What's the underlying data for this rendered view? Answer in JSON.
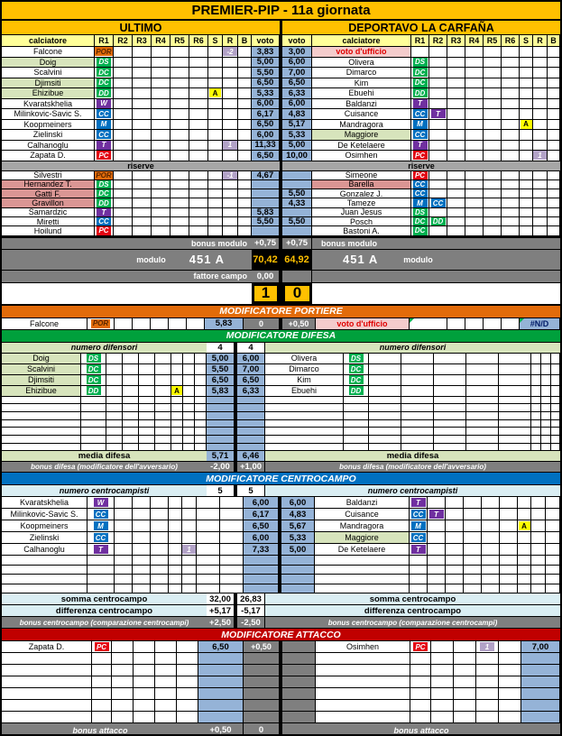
{
  "title": "PREMIER-PIP - 11a giornata",
  "colors": {
    "gold": "#FFC000",
    "pale_yellow": "#FFFF99",
    "light_green": "#D7E4BC",
    "pink": "#DA9694",
    "pink_light": "#F4CCCC",
    "red_text": "#E00000",
    "blue": "#95B3D7",
    "light_blue": "#DAEEF3",
    "gray": "#7F7F7F",
    "banner_orange": "#E26B0A",
    "banner_green": "#00A03C",
    "banner_blue": "#0070C0",
    "banner_red": "#C00000",
    "badge_green": "#00B050",
    "badge_blue": "#0070C0",
    "badge_purple": "#7030A0",
    "badge_red": "#E30613",
    "badge_lilac": "#B2A2C7"
  },
  "header": {
    "home_team": "ULTIMO",
    "away_team": "DEPORTAVO LA CARFAÑA",
    "calciatore": "calciatore",
    "voto": "voto",
    "rating_cols": [
      "R1",
      "R2",
      "R3",
      "R4",
      "R5",
      "R6",
      "S",
      "R",
      "B"
    ]
  },
  "labels": {
    "riserve": "riserve",
    "bonus_modulo": "bonus modulo",
    "modulo": "modulo",
    "fattore_campo": "fattore campo",
    "portiere_banner": "MODIFICATORE PORTIERE",
    "difesa_banner": "MODIFICATORE DIFESA",
    "centrocampo_banner": "MODIFICATORE CENTROCAMPO",
    "attacco_banner": "MODIFICATORE ATTACCO",
    "numero_difensori": "numero difensori",
    "media_difesa": "media difesa",
    "bonus_difesa": "bonus difesa (modificatore dell'avversario)",
    "numero_centrocampisti": "numero centrocampisti",
    "somma_centrocampo": "somma centrocampo",
    "differenza_centrocampo": "differenza centrocampo",
    "bonus_centrocampo": "bonus centrocampo (comparazione centrocampi)",
    "bonus_attacco": "bonus attacco",
    "voto_ufficio": "voto d'ufficio",
    "nd": "#N/D"
  },
  "score": {
    "home": "1",
    "away": "0"
  },
  "home": {
    "starters": [
      {
        "name": "Falcone",
        "role": "POR",
        "r": "-2",
        "voto": "3,83"
      },
      {
        "name": "Doig",
        "role": "DS",
        "voto": "5,00",
        "bg": "green"
      },
      {
        "name": "Scalvini",
        "role": "DC",
        "voto": "5,50"
      },
      {
        "name": "Djimsiti",
        "role": "DC",
        "voto": "6,50",
        "bg": "green"
      },
      {
        "name": "Ehizibue",
        "role": "DD",
        "s": "A",
        "voto": "5,33",
        "bg": "green"
      },
      {
        "name": "Kvaratskhelia",
        "role": "W",
        "voto": "6,00"
      },
      {
        "name": "Milinkovic-Savic S.",
        "role": "CC",
        "voto": "6,17"
      },
      {
        "name": "Koopmeiners",
        "role": "M",
        "voto": "6,50"
      },
      {
        "name": "Zielinski",
        "role": "CC",
        "voto": "6,00"
      },
      {
        "name": "Calhanoglu",
        "role": "T",
        "r": "1",
        "voto": "11,33"
      },
      {
        "name": "Zapata D.",
        "role": "PC",
        "voto": "6,50"
      }
    ],
    "reserves": [
      {
        "name": "Silvestri",
        "role": "POR",
        "r": "-1",
        "voto": "4,67"
      },
      {
        "name": "Hernandez T.",
        "role": "DS",
        "bg": "pink"
      },
      {
        "name": "Gatti F.",
        "role": "DC",
        "bg": "pink"
      },
      {
        "name": "Gravillon",
        "role": "DD",
        "bg": "pink"
      },
      {
        "name": "Samardzic",
        "role": "T",
        "voto": "5,83"
      },
      {
        "name": "Miretti",
        "role": "CC",
        "voto": "5,50"
      },
      {
        "name": "Hoilund",
        "role": "PC"
      }
    ],
    "bonus_modulo": "+0,75",
    "modulo": "451 A",
    "totale": "70,42",
    "fattore_campo": "0,00",
    "portiere": {
      "name": "Falcone",
      "role": "POR",
      "voto": "5,83",
      "bonus": "0"
    },
    "difesa": {
      "numero": "4",
      "rows": [
        {
          "name": "Doig",
          "role": "DS",
          "voto": "5,00",
          "bg": "green"
        },
        {
          "name": "Scalvini",
          "role": "DC",
          "voto": "5,50",
          "bg": "green"
        },
        {
          "name": "Djimsiti",
          "role": "DC",
          "voto": "6,50",
          "bg": "green"
        },
        {
          "name": "Ehizibue",
          "role": "DD",
          "s": "A",
          "voto": "5,83",
          "bg": "green"
        }
      ],
      "media": "5,71",
      "bonus": "-2,00"
    },
    "centrocampo": {
      "numero": "5",
      "rows": [
        {
          "name": "Kvaratskhelia",
          "role": "W",
          "voto": "6,00"
        },
        {
          "name": "Milinkovic-Savic S.",
          "role": "CC",
          "voto": "6,17"
        },
        {
          "name": "Koopmeiners",
          "role": "M",
          "voto": "6,50"
        },
        {
          "name": "Zielinski",
          "role": "CC",
          "voto": "6,00"
        },
        {
          "name": "Calhanoglu",
          "role": "T",
          "r": "1",
          "voto": "7,33"
        }
      ],
      "somma": "32,00",
      "differenza": "+5,17",
      "bonus": "+2,50"
    },
    "attacco": {
      "rows": [
        {
          "name": "Zapata D.",
          "role": "PC",
          "voto": "6,50",
          "bonus": "+0,50"
        }
      ],
      "bonus": "+0,50"
    }
  },
  "away": {
    "starters": [
      {
        "name": "voto d'ufficio",
        "voto": "3,00",
        "bg": "ufficio"
      },
      {
        "name": "Olivera",
        "role": "DS",
        "voto": "6,00"
      },
      {
        "name": "Dimarco",
        "role": "DC",
        "voto": "7,00"
      },
      {
        "name": "Kim",
        "role": "DC",
        "voto": "6,50"
      },
      {
        "name": "Ebuehi",
        "role": "DD",
        "voto": "6,33"
      },
      {
        "name": "Baldanzi",
        "role": "T",
        "voto": "6,00"
      },
      {
        "name": "Cuisance",
        "role": "CC",
        "role2": "T",
        "voto": "4,83"
      },
      {
        "name": "Mandragora",
        "role": "M",
        "s": "A",
        "voto": "5,17"
      },
      {
        "name": "Maggiore",
        "role": "CC",
        "voto": "5,33",
        "bg": "green"
      },
      {
        "name": "De Ketelaere",
        "role": "T",
        "voto": "5,00"
      },
      {
        "name": "Osimhen",
        "role": "PC",
        "r": "1",
        "voto": "10,00"
      }
    ],
    "reserves": [
      {
        "name": "Simeone",
        "role": "PC"
      },
      {
        "name": "Barella",
        "role": "CC",
        "bg": "pink"
      },
      {
        "name": "Gonzalez J.",
        "role": "CC",
        "voto": "5,50"
      },
      {
        "name": "Tameze",
        "role": "M",
        "role2": "CC",
        "voto": "4,33"
      },
      {
        "name": "Juan Jesus",
        "role": "DS"
      },
      {
        "name": "Posch",
        "role": "DC",
        "role2": "DD",
        "voto": "5,50"
      },
      {
        "name": "Bastoni A.",
        "role": "DC"
      }
    ],
    "bonus_modulo": "+0,75",
    "modulo": "451 A",
    "totale": "64,92",
    "portiere": {
      "bonus": "+0,50",
      "name": "voto d'ufficio",
      "voto": "#N/D"
    },
    "difesa": {
      "numero": "4",
      "rows": [
        {
          "name": "Olivera",
          "role": "DS",
          "voto": "6,00"
        },
        {
          "name": "Dimarco",
          "role": "DC",
          "voto": "7,00"
        },
        {
          "name": "Kim",
          "role": "DC",
          "voto": "6,50"
        },
        {
          "name": "Ebuehi",
          "role": "DD",
          "voto": "6,33"
        }
      ],
      "media": "6,46",
      "bonus": "+1,00"
    },
    "centrocampo": {
      "numero": "5",
      "rows": [
        {
          "name": "Baldanzi",
          "role": "T",
          "voto": "6,00"
        },
        {
          "name": "Cuisance",
          "role": "CC",
          "role2": "T",
          "voto": "4,83"
        },
        {
          "name": "Mandragora",
          "role": "M",
          "s": "A",
          "voto": "5,67"
        },
        {
          "name": "Maggiore",
          "role": "CC",
          "voto": "5,33",
          "bg": "green"
        },
        {
          "name": "De Ketelaere",
          "role": "T",
          "voto": "5,00"
        }
      ],
      "somma": "26,83",
      "differenza": "-5,17",
      "bonus": "-2,50"
    },
    "attacco": {
      "rows": [
        {
          "name": "Osimhen",
          "role": "PC",
          "r": "1",
          "voto": "7,00"
        }
      ],
      "bonus": "0"
    }
  }
}
